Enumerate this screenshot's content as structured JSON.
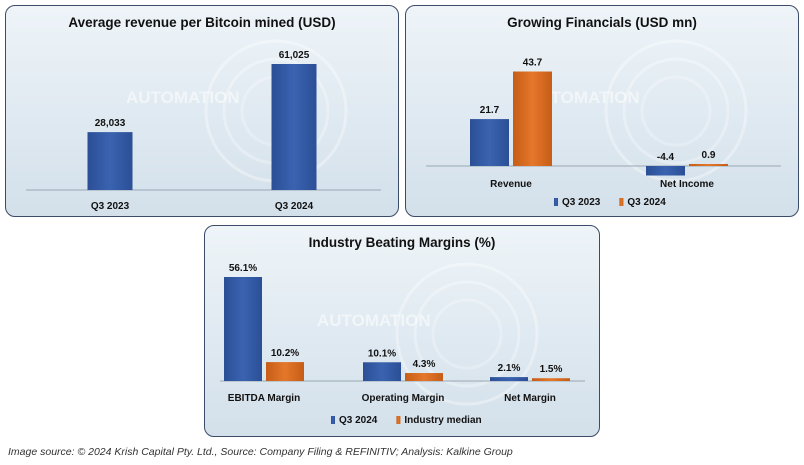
{
  "colors": {
    "q3_2024": "#3a63b0",
    "q3_2023_or_median": "#e4772a"
  },
  "watermark": "AUTOMATION",
  "source": "Image source: © 2024 Krish Capital Pty. Ltd., Source: Company Filing & REFINITIV; Analysis: Kalkine Group",
  "chart_data": [
    {
      "type": "bar",
      "title": "Average revenue per Bitcoin mined (USD)",
      "categories": [
        "Q3 2023",
        "Q3 2024"
      ],
      "series": [
        {
          "values": [
            28033,
            61025
          ],
          "labels": [
            "28,033",
            "61,025"
          ],
          "color_key": "q3_2024"
        }
      ],
      "ylim": [
        0,
        61025
      ],
      "legend": null
    },
    {
      "type": "bar",
      "title": "Growing Financials (USD mn)",
      "categories": [
        "Revenue",
        "Net Income"
      ],
      "series": [
        {
          "name": "Q3 2023",
          "values": [
            21.7,
            -4.4
          ],
          "labels": [
            "21.7",
            "-4.4"
          ],
          "color_key": "q3_2024"
        },
        {
          "name": "Q3 2024",
          "values": [
            43.7,
            0.9
          ],
          "labels": [
            "43.7",
            "0.9"
          ],
          "color_key": "q3_2023_or_median"
        }
      ],
      "ylim": [
        -4.4,
        43.7
      ],
      "legend": "bottom"
    },
    {
      "type": "bar",
      "title": "Industry Beating Margins (%)",
      "categories": [
        "EBITDA Margin",
        "Operating Margin",
        "Net Margin"
      ],
      "series": [
        {
          "name": "Q3 2024",
          "values": [
            56.1,
            10.1,
            2.1
          ],
          "labels": [
            "56.1%",
            "10.1%",
            "2.1%"
          ],
          "color_key": "q3_2024"
        },
        {
          "name": "Industry median",
          "values": [
            10.2,
            4.3,
            1.5
          ],
          "labels": [
            "10.2%",
            "4.3%",
            "1.5%"
          ],
          "color_key": "q3_2023_or_median"
        }
      ],
      "ylim": [
        0,
        56.1
      ],
      "legend": "bottom"
    }
  ]
}
